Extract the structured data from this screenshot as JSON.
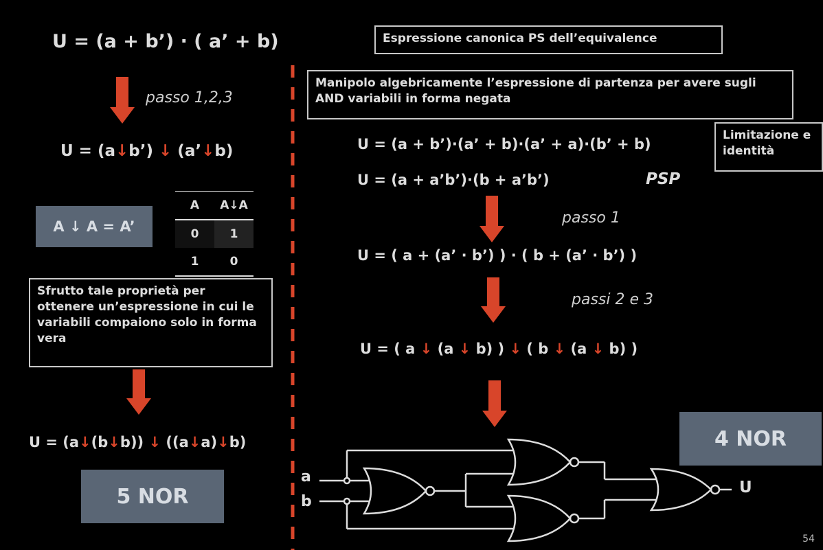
{
  "left": {
    "formula_top": "U  =  (a + b’) · ( a’ + b)",
    "step_label": "passo 1,2,3",
    "formula_nor": [
      "U  = (a",
      "↓",
      "b’) ",
      "↓",
      " (a’",
      "↓",
      "b)"
    ],
    "identity_box": "A ↓ A = A’",
    "truth_table": {
      "headers": [
        "A",
        "A↓A"
      ],
      "rows": [
        [
          "0",
          "1"
        ],
        [
          "1",
          "0"
        ]
      ]
    },
    "explain_box": "Sfrutto tale proprietà per ottenere un’espressione in cui le variabili compaiono solo in forma vera",
    "formula_bottom": [
      "U = (a",
      "↓",
      "(b",
      "↓",
      "b)) ",
      "↓",
      " ((a",
      "↓",
      "a)",
      "↓",
      "b)"
    ],
    "nor_count": "5 NOR"
  },
  "right": {
    "title_box": "Espressione canonica PS dell’equivalence",
    "manip_box": "Manipolo algebricamente l’espressione di partenza per avere sugli AND variabili in forma negata",
    "limit_box": "Limitazione e identità",
    "formula_1": "U  =  (a + b’)·(a’ + b)·(a’ + a)·(b’ + b)",
    "formula_2": "U  = (a  +  a’b’)·(b  +  a’b’)",
    "psp_label": "PSP",
    "step_1": "passo 1",
    "formula_3": "U  = ( a  + (a’ · b’) ) · ( b + (a’ · b’) )",
    "step_2": "passi 2 e 3",
    "formula_4": [
      "U  = ( a ",
      "↓",
      " (a ",
      "↓",
      " b) ) ",
      "↓",
      " ( b ",
      "↓",
      " (a ",
      "↓",
      " b) )"
    ],
    "nor_count": "4 NOR",
    "circuit": {
      "input_a": "a",
      "input_b": "b",
      "output": "U"
    }
  },
  "page_number": "54",
  "colors": {
    "arrow_red": "#d8452a",
    "gray_box": "#5a6675",
    "divider_red": "#d8452a"
  }
}
